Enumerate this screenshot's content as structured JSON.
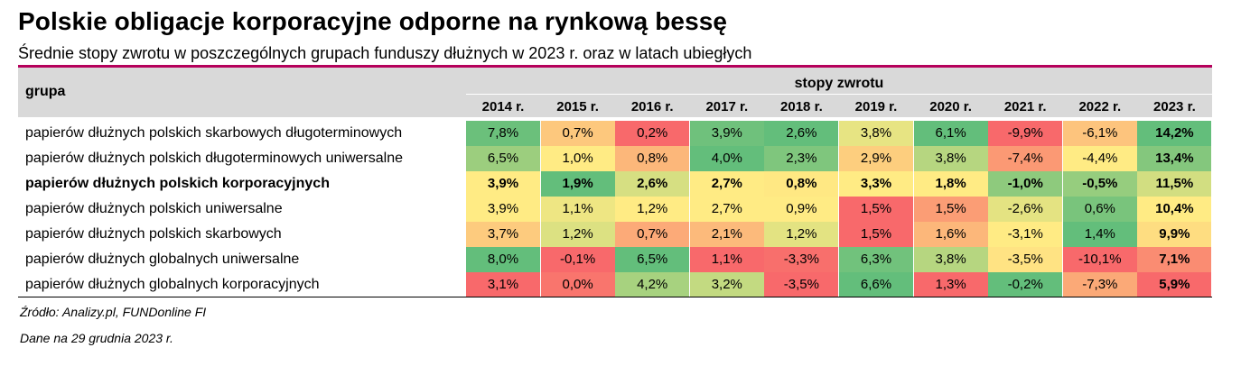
{
  "title": "Polskie obligacje korporacyjne odporne na rynkową bessę",
  "subtitle": "Średnie stopy zwrotu w poszczególnych grupach funduszy dłużnych w 2023 r. oraz w latach ubiegłych",
  "header": {
    "group_label": "grupa",
    "returns_label": "stopy zwrotu"
  },
  "footer": {
    "source": "Źródło: Analizy.pl, FUNDonline FI",
    "date": "Dane na 29 grudnia 2023 r."
  },
  "chart_data": {
    "type": "table",
    "columns": [
      "2014 r.",
      "2015 r.",
      "2016 r.",
      "2017 r.",
      "2018 r.",
      "2019 r.",
      "2020 r.",
      "2021 r.",
      "2022 r.",
      "2023 r."
    ],
    "bold_column": "2023 r.",
    "rows": [
      {
        "label": "papierów dłużnych polskich skarbowych długoterminowych",
        "bold": false,
        "values": [
          7.8,
          0.7,
          0.2,
          3.9,
          2.6,
          3.8,
          6.1,
          -9.9,
          -6.1,
          14.2
        ]
      },
      {
        "label": "papierów dłużnych polskich długoterminowych uniwersalne",
        "bold": false,
        "values": [
          6.5,
          1.0,
          0.8,
          4.0,
          2.3,
          2.9,
          3.8,
          -7.4,
          -4.4,
          13.4
        ]
      },
      {
        "label": "papierów dłużnych polskich korporacyjnych",
        "bold": true,
        "values": [
          3.9,
          1.9,
          2.6,
          2.7,
          0.8,
          3.3,
          1.8,
          -1.0,
          -0.5,
          11.5
        ]
      },
      {
        "label": "papierów dłużnych polskich uniwersalne",
        "bold": false,
        "values": [
          3.9,
          1.1,
          1.2,
          2.7,
          0.9,
          1.5,
          1.5,
          -2.6,
          0.6,
          10.4
        ]
      },
      {
        "label": "papierów dłużnych polskich skarbowych",
        "bold": false,
        "values": [
          3.7,
          1.2,
          0.7,
          2.1,
          1.2,
          1.5,
          1.6,
          -3.1,
          1.4,
          9.9
        ]
      },
      {
        "label": "papierów dłużnych globalnych uniwersalne",
        "bold": false,
        "values": [
          8.0,
          -0.1,
          6.5,
          1.1,
          -3.3,
          6.3,
          3.8,
          -3.5,
          -10.1,
          7.1
        ]
      },
      {
        "label": "papierów dłużnych globalnych korporacyjnych",
        "bold": false,
        "values": [
          3.1,
          0.0,
          4.2,
          3.2,
          -3.5,
          6.6,
          1.3,
          -0.2,
          -7.3,
          5.9
        ]
      }
    ],
    "value_format": "percent, 1 decimal, comma separator",
    "color_scale": {
      "low": "#f8696b",
      "mid": "#ffeb84",
      "high": "#63be7b"
    }
  }
}
